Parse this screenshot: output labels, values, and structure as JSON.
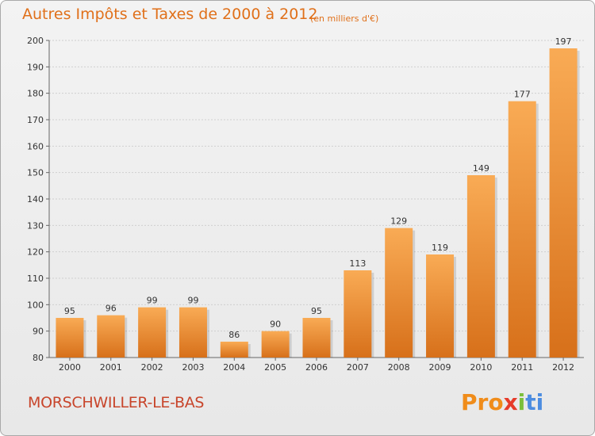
{
  "title": "Autres Impôts et Taxes de 2000 à 2012",
  "subtitle": "(en milliers d'€)",
  "commune": "MORSCHWILLER-LE-BAS",
  "logo": {
    "part1": "Pro",
    "part2": "x",
    "part3": "i",
    "part4": "ti"
  },
  "colors": {
    "bar_light": "#f7a64e",
    "bar_dark": "#d9741a",
    "title": "#e0701a",
    "commune": "#c8452b"
  },
  "chart_data": {
    "type": "bar",
    "title": "Autres Impôts et Taxes de 2000 à 2012",
    "subtitle": "(en milliers d'€)",
    "categories": [
      "2000",
      "2001",
      "2002",
      "2003",
      "2004",
      "2005",
      "2006",
      "2007",
      "2008",
      "2009",
      "2010",
      "2011",
      "2012"
    ],
    "values": [
      95,
      96,
      99,
      99,
      86,
      90,
      95,
      113,
      129,
      119,
      149,
      177,
      197
    ],
    "ylim": [
      80,
      200
    ],
    "yticks": [
      80,
      90,
      100,
      110,
      120,
      130,
      140,
      150,
      160,
      170,
      180,
      190,
      200
    ],
    "grid": true,
    "data_labels": true
  }
}
